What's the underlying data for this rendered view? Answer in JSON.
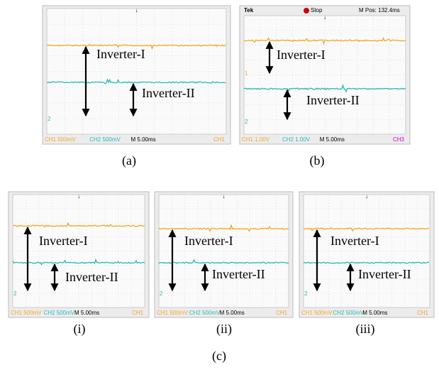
{
  "panels": [
    {
      "footer": [
        "CH1 500mV",
        "CH2 500mV",
        "M 5.00ms",
        "CH1"
      ],
      "markers": [
        "2"
      ],
      "labels": [
        "Inverter-I",
        "Inverter-II"
      ],
      "caption": "(a)"
    },
    {
      "header": [
        "Tek",
        "Stop",
        "M Pos: 132.4ms"
      ],
      "footer": [
        "CH1 1.00V",
        "CH2 1.00V",
        "M 5.00ms",
        "CH3"
      ],
      "markers": [
        "1",
        "2"
      ],
      "labels": [
        "Inverter-I",
        "Inverter-II"
      ],
      "caption": "(b)"
    }
  ],
  "group": {
    "subpanels": [
      {
        "footer": [
          "CH1 500mV",
          "CH2 500mV",
          "M 5.00ms",
          "CH1"
        ],
        "markers": [
          "2"
        ],
        "labels": [
          "Inverter-I",
          "Inverter-II"
        ],
        "caption": "(i)"
      },
      {
        "footer": [
          "CH1 500mV",
          "CH2 500mV",
          "M 5.00ms",
          "CH1"
        ],
        "markers": [
          "2"
        ],
        "labels": [
          "Inverter-I",
          "Inverter-II"
        ],
        "caption": "(ii)"
      },
      {
        "footer": [
          "CH1 500mV",
          "CH2 500mV",
          "M 5.00ms",
          "CH1"
        ],
        "markers": [
          "2"
        ],
        "labels": [
          "Inverter-I",
          "Inverter-II"
        ],
        "caption": "(iii)"
      }
    ],
    "caption": "(c)"
  }
}
